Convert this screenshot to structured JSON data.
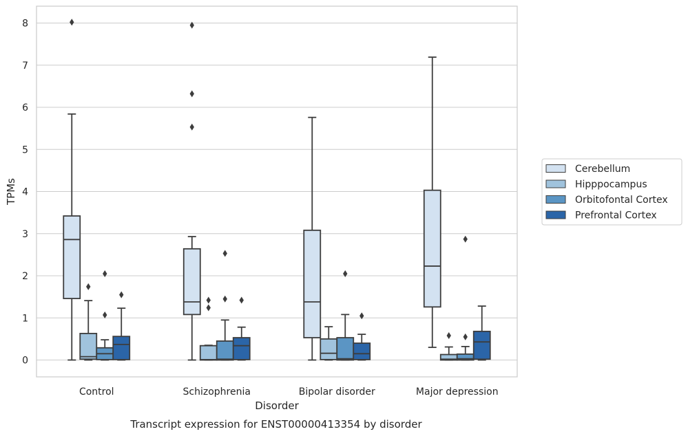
{
  "chart_data": {
    "type": "box",
    "title": "Transcript expression for ENST00000413354 by disorder",
    "xlabel": "Disorder",
    "ylabel": "TPMs",
    "ylim": [
      -0.4,
      8.4
    ],
    "yticks": [
      0,
      1,
      2,
      3,
      4,
      5,
      6,
      7,
      8
    ],
    "grid": true,
    "legend_position": "right",
    "categories": [
      "Control",
      "Schizophrenia",
      "Bipolar disorder",
      "Major depression"
    ],
    "series": [
      {
        "name": "Cerebellum",
        "color": "#d3e2f1",
        "boxes": [
          {
            "whislo": 0.0,
            "q1": 1.46,
            "med": 2.86,
            "q3": 3.42,
            "whishi": 5.84,
            "fliers": [
              8.02
            ]
          },
          {
            "whislo": 0.0,
            "q1": 1.08,
            "med": 1.38,
            "q3": 2.64,
            "whishi": 2.93,
            "fliers": [
              7.95,
              6.32,
              5.53
            ]
          },
          {
            "whislo": 0.0,
            "q1": 0.53,
            "med": 1.38,
            "q3": 3.08,
            "whishi": 5.76,
            "fliers": []
          },
          {
            "whislo": 0.3,
            "q1": 1.26,
            "med": 2.23,
            "q3": 4.03,
            "whishi": 7.19,
            "fliers": []
          }
        ]
      },
      {
        "name": "Hipppocampus",
        "color": "#a0c3dd",
        "boxes": [
          {
            "whislo": 0.0,
            "q1": 0.02,
            "med": 0.08,
            "q3": 0.63,
            "whishi": 1.41,
            "fliers": [
              1.74
            ]
          },
          {
            "whislo": 0.0,
            "q1": 0.0,
            "med": 0.01,
            "q3": 0.34,
            "whishi": 0.35,
            "fliers": [
              1.42,
              1.24
            ]
          },
          {
            "whislo": 0.0,
            "q1": 0.01,
            "med": 0.16,
            "q3": 0.5,
            "whishi": 0.79,
            "fliers": []
          },
          {
            "whislo": 0.0,
            "q1": 0.0,
            "med": 0.02,
            "q3": 0.13,
            "whishi": 0.31,
            "fliers": [
              0.58
            ]
          }
        ]
      },
      {
        "name": "Orbitofontal Cortex",
        "color": "#5b95c4",
        "boxes": [
          {
            "whislo": 0.0,
            "q1": 0.01,
            "med": 0.15,
            "q3": 0.29,
            "whishi": 0.48,
            "fliers": [
              2.05,
              1.07
            ]
          },
          {
            "whislo": 0.0,
            "q1": 0.0,
            "med": 0.02,
            "q3": 0.45,
            "whishi": 0.95,
            "fliers": [
              2.53,
              1.45
            ]
          },
          {
            "whislo": 0.0,
            "q1": 0.0,
            "med": 0.03,
            "q3": 0.53,
            "whishi": 1.08,
            "fliers": [
              2.05
            ]
          },
          {
            "whislo": 0.0,
            "q1": 0.0,
            "med": 0.03,
            "q3": 0.14,
            "whishi": 0.32,
            "fliers": [
              2.87,
              0.55
            ]
          }
        ]
      },
      {
        "name": "Prefrontal Cortex",
        "color": "#2b65a8",
        "boxes": [
          {
            "whislo": 0.0,
            "q1": 0.01,
            "med": 0.37,
            "q3": 0.56,
            "whishi": 1.23,
            "fliers": [
              1.55
            ]
          },
          {
            "whislo": 0.0,
            "q1": 0.01,
            "med": 0.34,
            "q3": 0.53,
            "whishi": 0.78,
            "fliers": [
              1.42
            ]
          },
          {
            "whislo": 0.0,
            "q1": 0.01,
            "med": 0.15,
            "q3": 0.4,
            "whishi": 0.61,
            "fliers": [
              1.05
            ]
          },
          {
            "whislo": 0.0,
            "q1": 0.02,
            "med": 0.43,
            "q3": 0.68,
            "whishi": 1.28,
            "fliers": []
          }
        ]
      }
    ]
  }
}
